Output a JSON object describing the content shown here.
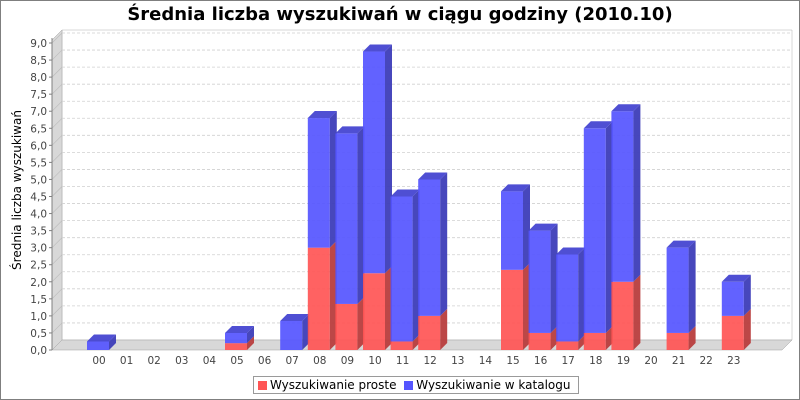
{
  "chart_data": {
    "type": "bar",
    "stacked": true,
    "title": "Średnia liczba wyszukiwań w ciągu godziny (2010.10)",
    "ylabel": "Średnia liczba wyszukiwań",
    "xlabel": "",
    "ylim": [
      0,
      9.0
    ],
    "y_ticks": [
      "0,0",
      "0,5",
      "1,0",
      "1,5",
      "2,0",
      "2,5",
      "3,0",
      "3,5",
      "4,0",
      "4,5",
      "5,0",
      "5,5",
      "6,0",
      "6,5",
      "7,0",
      "7,5",
      "8,0",
      "8,5",
      "9,0"
    ],
    "categories": [
      "00",
      "01",
      "02",
      "03",
      "04",
      "05",
      "06",
      "07",
      "08",
      "09",
      "10",
      "11",
      "12",
      "13",
      "14",
      "15",
      "16",
      "17",
      "18",
      "19",
      "20",
      "21",
      "22",
      "23"
    ],
    "series": [
      {
        "name": "Wyszukiwanie proste",
        "color": "#ff5555",
        "values": [
          0,
          0,
          0,
          0,
          0,
          0.2,
          0,
          0,
          3.0,
          1.35,
          2.25,
          0.25,
          1.0,
          0,
          0,
          2.35,
          0.5,
          0.25,
          0.5,
          2.0,
          0,
          0.5,
          0,
          1.0
        ]
      },
      {
        "name": "Wyszukiwanie w katalogu",
        "color": "#5555ff",
        "values": [
          0.25,
          0,
          0,
          0,
          0,
          0.3,
          0,
          0.85,
          3.8,
          5.0,
          6.5,
          4.25,
          4.0,
          0,
          0,
          2.3,
          3.0,
          2.55,
          6.0,
          5.0,
          0,
          2.5,
          0,
          1.0
        ]
      }
    ],
    "grid": true,
    "legend_position": "bottom"
  }
}
